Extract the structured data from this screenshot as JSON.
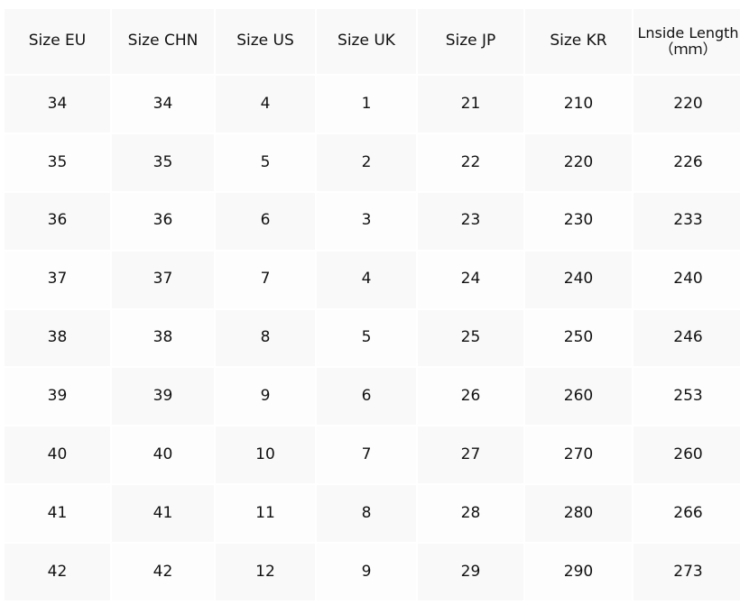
{
  "table": {
    "header": [
      "Size EU",
      "Size CHN",
      "Size US",
      "Size UK",
      "Size JP",
      "Size KR",
      "Lnside Length\n（ｍｍ）"
    ],
    "rows": [
      [
        34,
        34,
        4,
        1,
        21,
        210,
        220
      ],
      [
        35,
        35,
        5,
        2,
        22,
        220,
        226
      ],
      [
        36,
        36,
        6,
        3,
        23,
        230,
        233
      ],
      [
        37,
        37,
        7,
        4,
        24,
        240,
        240
      ],
      [
        38,
        38,
        8,
        5,
        25,
        250,
        246
      ],
      [
        39,
        39,
        9,
        6,
        26,
        260,
        253
      ],
      [
        40,
        40,
        10,
        7,
        27,
        270,
        260
      ],
      [
        41,
        41,
        11,
        8,
        28,
        280,
        266
      ],
      [
        42,
        42,
        12,
        9,
        29,
        290,
        273
      ]
    ]
  }
}
